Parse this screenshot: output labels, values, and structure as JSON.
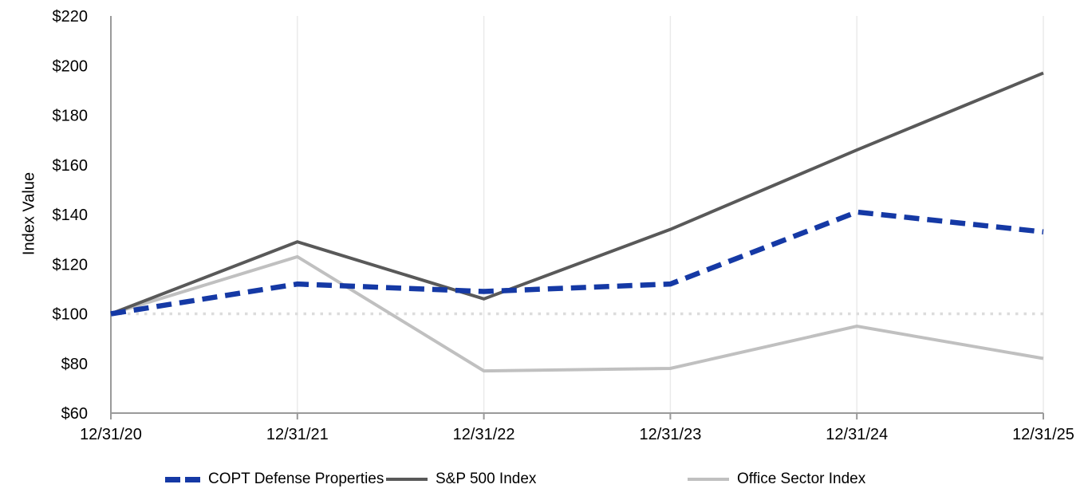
{
  "chart_data": {
    "type": "line",
    "x": [
      "12/31/20",
      "12/31/21",
      "12/31/22",
      "12/31/23",
      "12/31/24",
      "12/31/25"
    ],
    "series": [
      {
        "name": "COPT Defense Properties",
        "color": "#1539A5",
        "style": "dashed",
        "values": [
          100,
          112,
          109,
          112,
          141,
          133
        ]
      },
      {
        "name": "S&P 500 Index",
        "color": "#595959",
        "style": "solid",
        "values": [
          100,
          129,
          106,
          134,
          166,
          197
        ]
      },
      {
        "name": "Office Sector Index",
        "color": "#C0C0C0",
        "style": "solid",
        "values": [
          100,
          123,
          77,
          78,
          95,
          82
        ]
      }
    ],
    "ylabel": "Index Value",
    "xlabel": "",
    "ylim": [
      60,
      220
    ],
    "yticks": [
      60,
      80,
      100,
      120,
      140,
      160,
      180,
      200,
      220
    ],
    "ytick_labels": [
      "$60",
      "$80",
      "$100",
      "$120",
      "$140",
      "$160",
      "$180",
      "$200",
      "$220"
    ],
    "baseline_value": 100,
    "grid": "vertical-only",
    "legend_position": "bottom",
    "axis_color": "#9A9A9A",
    "gridline_color": "#EAEAEA",
    "baseline_color": "#DCDCDC"
  }
}
